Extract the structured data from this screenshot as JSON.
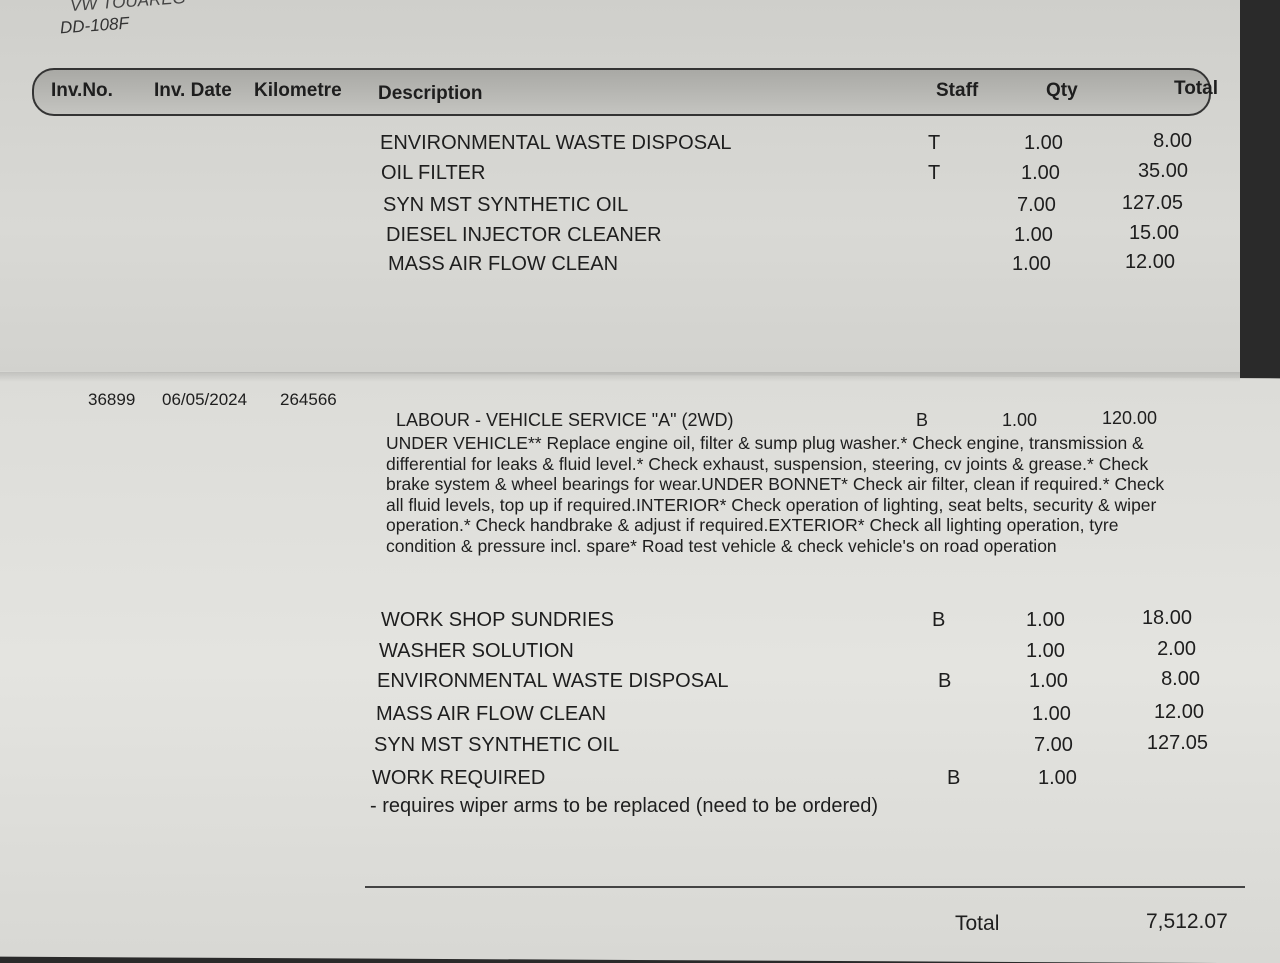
{
  "header_note": {
    "ref_cut": "VW TOUAREG",
    "rego": "DD-108F"
  },
  "columns": [
    "Inv.No.",
    "Inv. Date",
    "Kilometre",
    "Description",
    "Staff",
    "Qty",
    "Total"
  ],
  "section1": [
    {
      "desc": "ENVIRONMENTAL WASTE DISPOSAL",
      "staff": "T",
      "qty": "1.00",
      "total": "8.00"
    },
    {
      "desc": "OIL FILTER",
      "staff": "T",
      "qty": "1.00",
      "total": "35.00"
    },
    {
      "desc": "SYN MST SYNTHETIC OIL",
      "staff": "",
      "qty": "7.00",
      "total": "127.05"
    },
    {
      "desc": "DIESEL INJECTOR CLEANER",
      "staff": "",
      "qty": "1.00",
      "total": "15.00"
    },
    {
      "desc": "MASS AIR FLOW CLEAN",
      "staff": "",
      "qty": "1.00",
      "total": "12.00"
    }
  ],
  "invoice": {
    "number": "36899",
    "date": "06/05/2024",
    "kilometre": "264566"
  },
  "labour": {
    "desc": "LABOUR - VEHICLE SERVICE \"A\" (2WD)",
    "staff": "B",
    "qty": "1.00",
    "total": "120.00",
    "details": "UNDER VEHICLE** Replace engine oil, filter & sump plug washer.* Check engine, transmission & differential for leaks & fluid level.* Check exhaust, suspension, steering, cv joints & grease.* Check brake system & wheel bearings for wear.UNDER BONNET* Check air filter, clean if required.* Check all fluid levels, top up if required.INTERIOR* Check operation of lighting, seat belts, security & wiper operation.* Check handbrake & adjust if required.EXTERIOR* Check all lighting operation, tyre condition & pressure incl. spare* Road test vehicle & check vehicle's on road operation"
  },
  "section2": [
    {
      "desc": "WORK SHOP SUNDRIES",
      "staff": "B",
      "qty": "1.00",
      "total": "18.00"
    },
    {
      "desc": "WASHER SOLUTION",
      "staff": "",
      "qty": "1.00",
      "total": "2.00"
    },
    {
      "desc": "ENVIRONMENTAL WASTE DISPOSAL",
      "staff": "B",
      "qty": "1.00",
      "total": "8.00"
    },
    {
      "desc": "MASS AIR FLOW CLEAN",
      "staff": "",
      "qty": "1.00",
      "total": "12.00"
    },
    {
      "desc": "SYN MST SYNTHETIC OIL",
      "staff": "",
      "qty": "7.00",
      "total": "127.05"
    },
    {
      "desc": "WORK REQUIRED",
      "staff": "B",
      "qty": "1.00",
      "total": ""
    }
  ],
  "work_note": "- requires wiper arms to be replaced (need to be ordered)",
  "total": {
    "label": "Total",
    "value": "7,512.07"
  }
}
